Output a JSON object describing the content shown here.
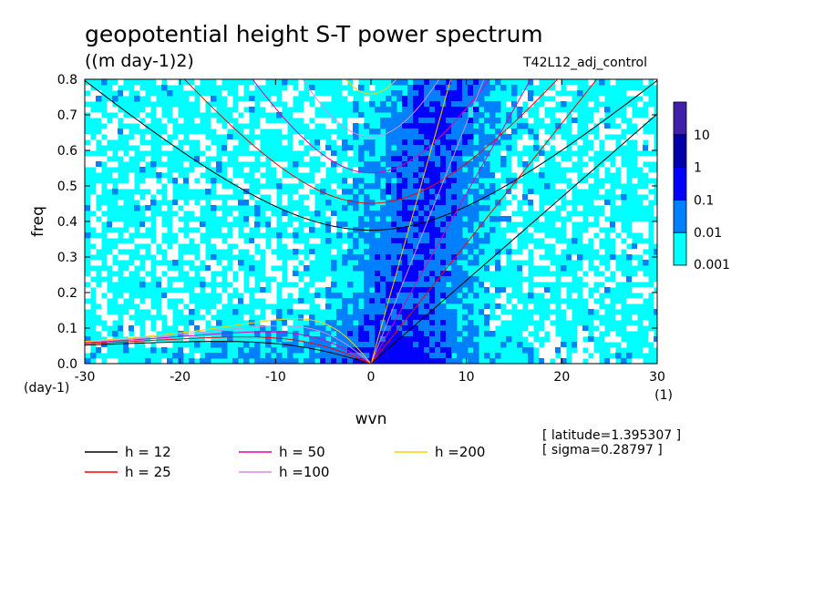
{
  "chart_data": {
    "type": "heatmap",
    "title": "geopotential height S-T power spectrum",
    "unit_label": "((m day-1)2)",
    "run_label": "T42L12_adj_control",
    "xlabel": "wvn",
    "ylabel": "freq",
    "x_unit": "(1)",
    "y_unit": "(day-1)",
    "xlim": [
      -30,
      30
    ],
    "ylim": [
      0,
      0.8
    ],
    "x_ticks": [
      "-30",
      "-20",
      "-10",
      "0",
      "10",
      "20",
      "30"
    ],
    "y_ticks": [
      "0.0",
      "0.1",
      "0.2",
      "0.3",
      "0.4",
      "0.5",
      "0.6",
      "0.7",
      "0.8"
    ],
    "colorbar": {
      "levels": [
        "0.001",
        "0.01",
        "0.1",
        "1",
        "10"
      ],
      "colors": [
        "#00ffff",
        "#0080ff",
        "#0000ff",
        "#0000a8",
        "#4020a8"
      ]
    },
    "info": [
      "[ latitude=1.395307 ]",
      "[ sigma=0.28797 ]"
    ],
    "dispersion_curves": [
      {
        "label": "h = 12",
        "h": 12,
        "color": "#000000"
      },
      {
        "label": "h = 25",
        "h": 25,
        "color": "#ff0000"
      },
      {
        "label": "h = 50",
        "h": 50,
        "color": "#e000b0"
      },
      {
        "label": "h =100",
        "h": 100,
        "color": "#d090e0"
      },
      {
        "label": "h =200",
        "h": 200,
        "color": "#ffd000"
      }
    ],
    "background_color": "#00ffff",
    "grid": false
  }
}
